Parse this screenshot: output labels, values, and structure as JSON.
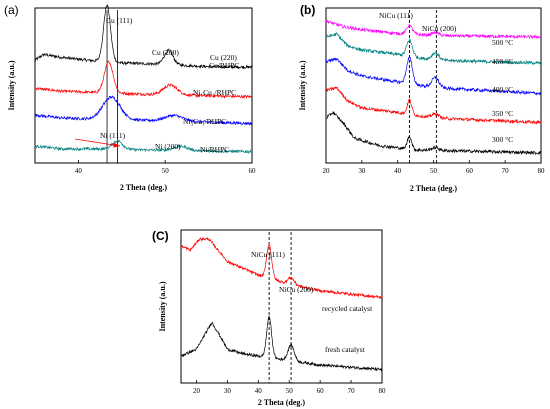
{
  "chart_data": [
    {
      "panel_label": "(a)",
      "type": "line",
      "xlabel": "2 Theta (deg.)",
      "ylabel": "Intensity (a.u.)",
      "xlim": [
        35,
        60
      ],
      "xticks": [
        40,
        50,
        60
      ],
      "series": [
        {
          "name": "Cu/RHPC",
          "color": "#000000",
          "offset": 3.0,
          "baseline": [
            [
              35,
              0.35
            ],
            [
              36,
              0.55
            ],
            [
              38,
              0.45
            ],
            [
              41,
              0.35
            ],
            [
              45,
              0.25
            ],
            [
              50,
              0.2
            ],
            [
              55,
              0.12
            ],
            [
              60,
              0.1
            ]
          ],
          "peaks": [
            [
              43.3,
              2.0,
              0.4
            ],
            [
              50.4,
              0.5,
              0.5
            ]
          ]
        },
        {
          "name": "Ni1Cu1/RHPC",
          "color": "#ff0000",
          "offset": 2.0,
          "baseline": [
            [
              35,
              0.35
            ],
            [
              38,
              0.25
            ],
            [
              42,
              0.2
            ],
            [
              50,
              0.12
            ],
            [
              60,
              0.05
            ]
          ],
          "peaks": [
            [
              43.5,
              1.1,
              0.5
            ],
            [
              50.6,
              0.35,
              0.8
            ]
          ]
        },
        {
          "name": "Ni3Cu1/RHPC",
          "color": "#0000ff",
          "offset": 1.05,
          "baseline": [
            [
              35,
              0.35
            ],
            [
              38,
              0.25
            ],
            [
              42,
              0.2
            ],
            [
              50,
              0.15
            ],
            [
              60,
              0.05
            ]
          ],
          "peaks": [
            [
              43.8,
              0.8,
              1.0
            ],
            [
              51.0,
              0.2,
              1.0
            ]
          ]
        },
        {
          "name": "Ni/RHPC",
          "color": "#008080",
          "offset": 0.0,
          "baseline": [
            [
              35,
              0.3
            ],
            [
              38,
              0.2
            ],
            [
              42,
              0.2
            ],
            [
              50,
              0.15
            ],
            [
              60,
              0.1
            ]
          ],
          "peaks": [
            [
              44.5,
              0.3,
              0.6
            ],
            [
              51.8,
              0.15,
              0.8
            ]
          ]
        }
      ],
      "annotations": [
        "Cu (111)",
        "Cu (200)",
        "Cu (220)",
        "Ni (111)",
        "Ni (200)"
      ],
      "legend": [
        "Cu/RHPC",
        "Ni₁Cu₁/RHPC",
        "Ni₃Cu₁/RHPC",
        "Ni/RHPC"
      ],
      "reference_lines": [
        43.3,
        44.5
      ]
    },
    {
      "panel_label": "(b)",
      "type": "line",
      "xlabel": "2 Theta (deg.)",
      "ylabel": "Intensity (a.u.)",
      "xlim": [
        20,
        80
      ],
      "xticks": [
        20,
        30,
        40,
        50,
        60,
        70,
        80
      ],
      "series": [
        {
          "name": "500 °C",
          "color": "#ff00ff",
          "offset": 4.0,
          "baseline": [
            [
              20,
              0.55
            ],
            [
              25,
              0.35
            ],
            [
              30,
              0.25
            ],
            [
              40,
              0.12
            ],
            [
              50,
              0.05
            ],
            [
              80,
              0.0
            ]
          ],
          "peaks": [
            [
              43.3,
              0.3,
              0.8
            ],
            [
              50.5,
              0.1,
              1.0
            ]
          ]
        },
        {
          "name": "450 °C",
          "color": "#008080",
          "offset": 3.1,
          "baseline": [
            [
              20,
              0.9
            ],
            [
              23,
              1.0
            ],
            [
              26,
              0.6
            ],
            [
              30,
              0.45
            ],
            [
              40,
              0.3
            ],
            [
              50,
              0.1
            ],
            [
              80,
              0.0
            ]
          ],
          "peaks": [
            [
              43.3,
              0.55,
              0.8
            ],
            [
              50.5,
              0.25,
              1.0
            ]
          ]
        },
        {
          "name": "400 °C",
          "color": "#0000ff",
          "offset": 2.05,
          "baseline": [
            [
              20,
              1.1
            ],
            [
              23,
              1.2
            ],
            [
              26,
              0.8
            ],
            [
              30,
              0.6
            ],
            [
              40,
              0.4
            ],
            [
              50,
              0.2
            ],
            [
              80,
              0.0
            ]
          ],
          "peaks": [
            [
              43.3,
              0.9,
              0.8
            ],
            [
              50.5,
              0.35,
              1.0
            ]
          ]
        },
        {
          "name": "350 °C",
          "color": "#ff0000",
          "offset": 1.05,
          "baseline": [
            [
              20,
              1.1
            ],
            [
              23,
              1.2
            ],
            [
              26,
              0.75
            ],
            [
              30,
              0.5
            ],
            [
              40,
              0.35
            ],
            [
              50,
              0.15
            ],
            [
              80,
              0.0
            ]
          ],
          "peaks": [
            [
              43.3,
              0.5,
              0.6
            ],
            [
              50.5,
              0.15,
              1.0
            ]
          ]
        },
        {
          "name": "300 °C",
          "color": "#000000",
          "offset": 0.0,
          "baseline": [
            [
              20,
              1.2
            ],
            [
              22,
              1.4
            ],
            [
              25,
              1.0
            ],
            [
              28,
              0.5
            ],
            [
              35,
              0.25
            ],
            [
              45,
              0.1
            ],
            [
              80,
              0.0
            ]
          ],
          "peaks": [
            [
              43.3,
              0.45,
              0.6
            ],
            [
              50.5,
              0.1,
              1.0
            ]
          ]
        }
      ],
      "annotations": [
        "NiCu (111)",
        "NiCu (200)"
      ],
      "legend": [
        "500 °C",
        "450 °C",
        "400 °C",
        "350 °C",
        "300 °C"
      ],
      "reference_lines": [
        43.3,
        50.8
      ]
    },
    {
      "panel_label": "(C)",
      "type": "line",
      "xlabel": "2 Theta (deg.)",
      "ylabel": "Intensity (a.u.)",
      "xlim": [
        15,
        80
      ],
      "xticks": [
        20,
        30,
        40,
        50,
        60,
        70,
        80
      ],
      "series": [
        {
          "name": "recycled catalyst",
          "color": "#ff0000",
          "offset": 1.6,
          "baseline": [
            [
              15,
              1.15
            ],
            [
              18,
              1.05
            ],
            [
              21,
              1.3
            ],
            [
              24,
              1.3
            ],
            [
              27,
              1.05
            ],
            [
              30,
              0.8
            ],
            [
              35,
              0.65
            ],
            [
              40,
              0.5
            ],
            [
              50,
              0.3
            ],
            [
              60,
              0.15
            ],
            [
              80,
              0.0
            ]
          ],
          "peaks": [
            [
              43.5,
              0.75,
              0.8
            ],
            [
              50.6,
              0.15,
              1.0
            ]
          ]
        },
        {
          "name": "fresh catalyst",
          "color": "#000000",
          "offset": 0.0,
          "baseline": [
            [
              15,
              0.3
            ],
            [
              20,
              0.45
            ],
            [
              25,
              1.05
            ],
            [
              28,
              0.7
            ],
            [
              30,
              0.45
            ],
            [
              35,
              0.35
            ],
            [
              40,
              0.3
            ],
            [
              50,
              0.2
            ],
            [
              60,
              0.1
            ],
            [
              80,
              0.0
            ]
          ],
          "peaks": [
            [
              43.5,
              0.9,
              0.8
            ],
            [
              50.6,
              0.35,
              1.0
            ]
          ]
        }
      ],
      "annotations": [
        "NiCu (111)",
        "NiCu (200)"
      ],
      "legend": [
        "recycled catalyst",
        "fresh catalyst"
      ],
      "reference_lines": [
        43.5,
        50.6
      ]
    }
  ]
}
